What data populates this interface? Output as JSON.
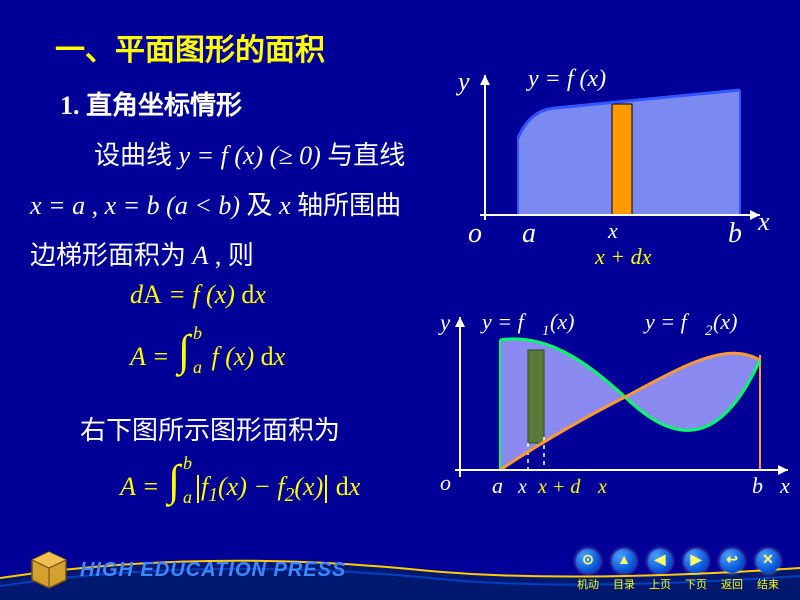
{
  "title": "一、平面图形的面积",
  "subtitle": "1. 直角坐标情形",
  "line1_a": "设曲线 ",
  "line1_b": "y = f (x) (≥ 0)",
  "line1_c": " 与直线",
  "line2_a": "x = a , x = b  (a < b)",
  "line2_b": " 及 ",
  "line2_c": "x",
  "line2_d": " 轴所围曲",
  "line3_a": "边梯形面积为 ",
  "line3_b": "A",
  "line3_c": " , 则",
  "formula1": "d<span class='txt'>A</span> = f (x) <span class='dx'>d</span>x",
  "formula2_pre": "A =",
  "formula2_ub": "b",
  "formula2_lb": "a",
  "formula2_body": "f (x) <span class='dx'>d</span>x",
  "line4": "右下图所示图形面积为",
  "formula3_pre": "A =",
  "formula3_ub": "b",
  "formula3_lb": "a",
  "formula3_body": "f<sub>1</sub>(x) − f<sub>2</sub>(x)",
  "formula3_dx": "<span class='dx'>d</span>x",
  "fig1": {
    "y_label": "y",
    "x_label": "x",
    "curve_label": "y = f (x)",
    "o": "o",
    "a": "a",
    "b": "b",
    "x_mark": "x",
    "xdx": "x + dx",
    "colors": {
      "fill": "#7a8af0",
      "strip": "#ff9900",
      "axis": "#ffffff",
      "text": "#ffffff",
      "xdx": "#ffff00"
    }
  },
  "fig2": {
    "y_label": "y",
    "x_label": "x",
    "f1_label": "y = f1(x)",
    "f2_label": "y = f2(x)",
    "o": "o",
    "a": "a",
    "b": "b",
    "x_mark": "x",
    "xdx": "x + d x",
    "colors": {
      "fill": "#8a8af0",
      "f1": "#00ff66",
      "f2": "#ff9933",
      "strip": "#6a8a4a",
      "axis": "#ffffff",
      "text": "#ffffff",
      "xdx": "#ffff00"
    }
  },
  "footer": {
    "brand": "HIGH EDUCATION PRESS",
    "nav": [
      {
        "label": "机动",
        "glyph": "⊙"
      },
      {
        "label": "目录",
        "glyph": "▲"
      },
      {
        "label": "上页",
        "glyph": "◀"
      },
      {
        "label": "下页",
        "glyph": "▶"
      },
      {
        "label": "返回",
        "glyph": "↩"
      },
      {
        "label": "结束",
        "glyph": "✕"
      }
    ]
  }
}
